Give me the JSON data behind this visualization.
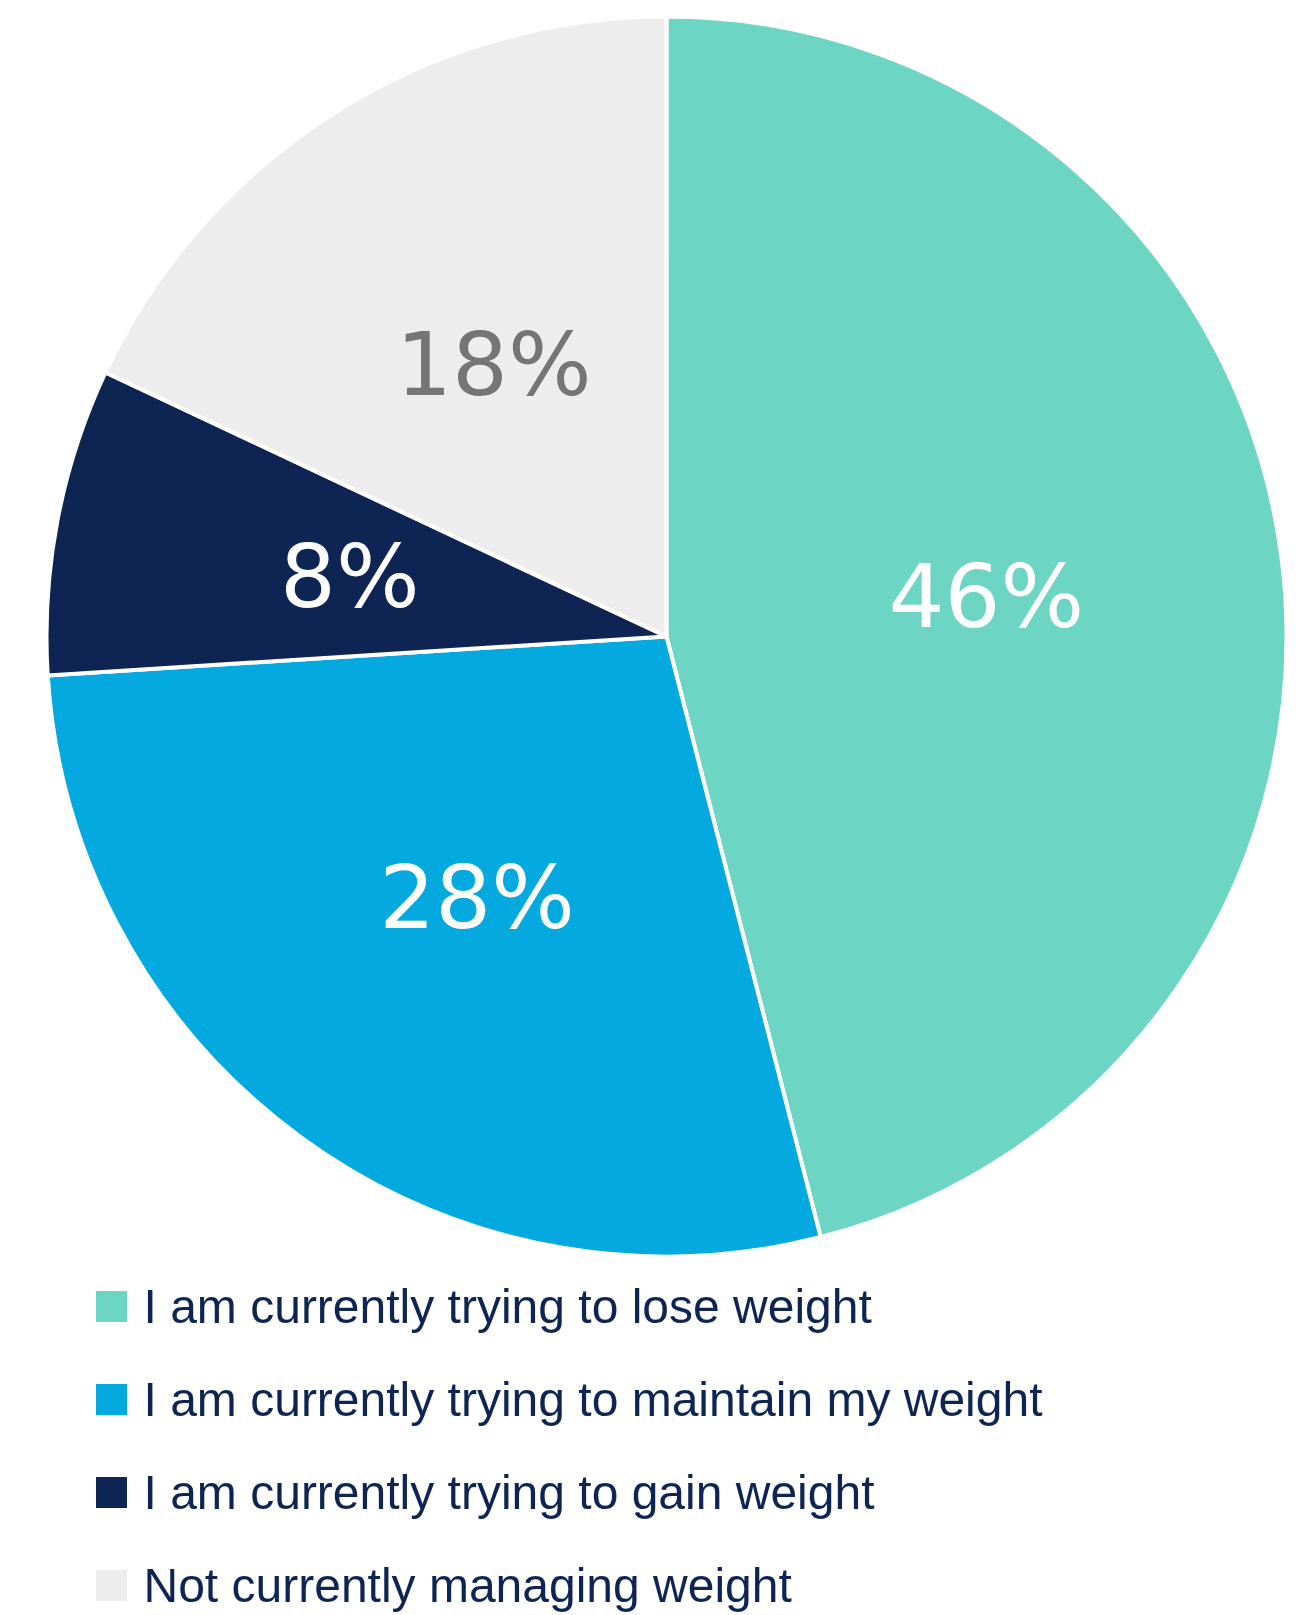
{
  "chart_data": {
    "type": "pie",
    "categories": [
      "I am currently trying to lose weight",
      "I am currently trying to maintain my weight",
      "I am currently trying to gain weight",
      "Not currently managing weight"
    ],
    "values": [
      46,
      28,
      8,
      18
    ],
    "colors": [
      "#6dd5c3",
      "#04a9e0",
      "#0e2554",
      "#ecedec"
    ],
    "value_labels": [
      "46%",
      "28%",
      "8%",
      "18%"
    ],
    "legend": "bottom"
  }
}
